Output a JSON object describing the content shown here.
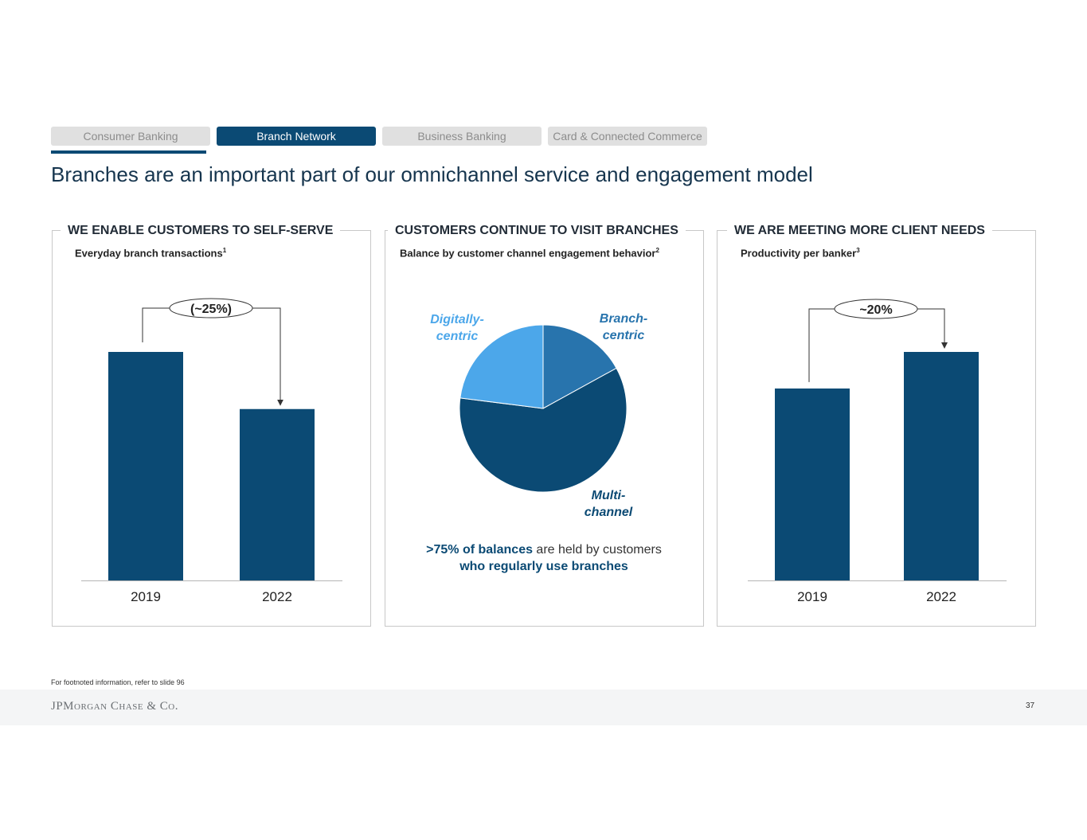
{
  "tabs": [
    {
      "label": "Consumer Banking",
      "active": false
    },
    {
      "label": "Branch Network",
      "active": true
    },
    {
      "label": "Business Banking",
      "active": false
    },
    {
      "label": "Card & Connected Commerce",
      "active": false
    }
  ],
  "title": "Branches are an important part of our omnichannel service and engagement model",
  "panels": [
    {
      "heading": "WE ENABLE CUSTOMERS TO SELF-SERVE",
      "subtitle": "Everyday branch transactions",
      "footnote_mark": "1"
    },
    {
      "heading": "CUSTOMERS CONTINUE TO VISIT BRANCHES",
      "subtitle": "Balance by customer channel engagement behavior",
      "footnote_mark": "2"
    },
    {
      "heading": "WE ARE MEETING MORE CLIENT NEEDS",
      "subtitle": "Productivity per banker",
      "footnote_mark": "3"
    }
  ],
  "chart_data": [
    {
      "type": "bar",
      "title": "Everyday branch transactions",
      "categories": [
        "2019",
        "2022"
      ],
      "values": [
        100,
        75
      ],
      "ylim": [
        0,
        100
      ],
      "annotation": "(~25%)",
      "colors": {
        "bar": "#0b4a74"
      }
    },
    {
      "type": "pie",
      "title": "Balance by customer channel engagement behavior",
      "slices": [
        {
          "label": "Branch-centric",
          "display": "Branch-\ncentric",
          "value": 17,
          "color": "#2874ad"
        },
        {
          "label": "Multi-channel",
          "display": "Multi-\nchannel",
          "value": 60,
          "color": "#0b4a74"
        },
        {
          "label": "Digitally-centric",
          "display": "Digitally-\ncentric",
          "value": 23,
          "color": "#4ca7ea"
        }
      ]
    },
    {
      "type": "bar",
      "title": "Productivity per banker",
      "categories": [
        "2019",
        "2022"
      ],
      "values": [
        84,
        100
      ],
      "ylim": [
        0,
        100
      ],
      "annotation": "~20%",
      "colors": {
        "bar": "#0b4a74"
      }
    }
  ],
  "note": {
    "highlight": ">75% of balances",
    "middle": " are held by customers",
    "line2": "who regularly use branches"
  },
  "footnote": "For footnoted information, refer to slide 96",
  "logo": "JPMorgan Chase & Co.",
  "page_number": "37",
  "colors": {
    "navy": "#0b4a74",
    "mid_blue": "#2874ad",
    "light_blue": "#4ca7ea"
  }
}
